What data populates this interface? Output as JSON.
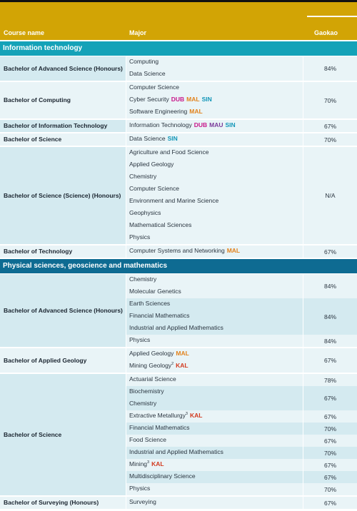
{
  "header": {
    "course_col": "Course name",
    "major_col": "Major",
    "gaokao_col": "Gaokao"
  },
  "colors": {
    "header": "#d2a405",
    "section1": "#14a2b8",
    "section2": "#0e6b92",
    "row_light": "#e9f4f7",
    "row_dark": "#d4eaf0"
  },
  "sections": [
    {
      "title": "Information technology",
      "color": "#14a2b8",
      "courses": [
        {
          "name": "Bachelor of Advanced Science (Honours)",
          "blocks": [
            {
              "majors": [
                {
                  "name": "Computing",
                  "tags": []
                },
                {
                  "name": "Data Science",
                  "tags": []
                }
              ],
              "score": "84%"
            }
          ]
        },
        {
          "name": "Bachelor of Computing",
          "blocks": [
            {
              "majors": [
                {
                  "name": "Computer Science",
                  "tags": []
                },
                {
                  "name": "Cyber Security",
                  "tags": [
                    "DUB",
                    "MAL",
                    "SIN"
                  ]
                },
                {
                  "name": "Software Engineering",
                  "tags": [
                    "MAL"
                  ]
                }
              ],
              "score": "70%"
            }
          ]
        },
        {
          "name": "Bachelor of Information Technology",
          "blocks": [
            {
              "majors": [
                {
                  "name": "Information Technology",
                  "tags": [
                    "DUB",
                    "MAU",
                    "SIN"
                  ]
                }
              ],
              "score": "67%"
            }
          ]
        },
        {
          "name": "Bachelor of Science",
          "blocks": [
            {
              "majors": [
                {
                  "name": "Data Science",
                  "tags": [
                    "SIN"
                  ]
                }
              ],
              "score": "70%"
            }
          ]
        },
        {
          "name": "Bachelor of Science (Science) (Honours)",
          "blocks": [
            {
              "majors": [
                {
                  "name": "Agriculture and Food Science",
                  "tags": []
                },
                {
                  "name": "Applied Geology",
                  "tags": []
                },
                {
                  "name": "Chemistry",
                  "tags": []
                },
                {
                  "name": "Computer Science",
                  "tags": []
                },
                {
                  "name": "Environment and Marine Science",
                  "tags": []
                },
                {
                  "name": "Geophysics",
                  "tags": []
                },
                {
                  "name": "Mathematical Sciences",
                  "tags": []
                },
                {
                  "name": "Physics",
                  "tags": []
                }
              ],
              "score": "N/A"
            }
          ]
        },
        {
          "name": "Bachelor of Technology",
          "blocks": [
            {
              "majors": [
                {
                  "name": "Computer Systems and Networking",
                  "tags": [
                    "MAL"
                  ]
                }
              ],
              "score": "67%"
            }
          ]
        }
      ]
    },
    {
      "title": "Physical sciences, geoscience and mathematics",
      "color": "#0e6b92",
      "courses": [
        {
          "name": "Bachelor of Advanced Science (Honours)",
          "blocks": [
            {
              "majors": [
                {
                  "name": "Chemistry",
                  "tags": []
                },
                {
                  "name": "Molecular Genetics",
                  "tags": []
                }
              ],
              "score": "84%"
            },
            {
              "majors": [
                {
                  "name": "Earth Sciences",
                  "tags": []
                },
                {
                  "name": "Financial Mathematics",
                  "tags": []
                },
                {
                  "name": "Industrial and Applied Mathematics",
                  "tags": []
                }
              ],
              "score": "84%"
            },
            {
              "majors": [
                {
                  "name": "Physics",
                  "tags": []
                }
              ],
              "score": "84%"
            }
          ]
        },
        {
          "name": "Bachelor of Applied Geology",
          "blocks": [
            {
              "majors": [
                {
                  "name": "Applied Geology",
                  "tags": [
                    "MAL"
                  ]
                },
                {
                  "name": "Mining Geology",
                  "sup": "2",
                  "tags": [
                    "KAL"
                  ]
                }
              ],
              "score": "67%"
            }
          ]
        },
        {
          "name": "Bachelor of Science",
          "blocks": [
            {
              "majors": [
                {
                  "name": "Actuarial Science",
                  "tags": []
                }
              ],
              "score": "78%"
            },
            {
              "majors": [
                {
                  "name": "Biochemistry",
                  "tags": []
                },
                {
                  "name": "Chemistry",
                  "tags": []
                }
              ],
              "score": "67%"
            },
            {
              "majors": [
                {
                  "name": "Extractive Metallurgy",
                  "sup": "3",
                  "tags": [
                    "KAL"
                  ]
                }
              ],
              "score": "67%"
            },
            {
              "majors": [
                {
                  "name": "Financial Mathematics",
                  "tags": []
                }
              ],
              "score": "70%"
            },
            {
              "majors": [
                {
                  "name": "Food Science",
                  "tags": []
                }
              ],
              "score": "67%"
            },
            {
              "majors": [
                {
                  "name": "Industrial and Applied Mathematics",
                  "tags": []
                }
              ],
              "score": "70%"
            },
            {
              "majors": [
                {
                  "name": "Mining",
                  "sup": "3",
                  "tags": [
                    "KAL"
                  ]
                }
              ],
              "score": "67%"
            },
            {
              "majors": [
                {
                  "name": "Multidisciplinary Science",
                  "tags": []
                }
              ],
              "score": "67%"
            },
            {
              "majors": [
                {
                  "name": "Physics",
                  "tags": []
                }
              ],
              "score": "70%"
            }
          ]
        },
        {
          "name": "Bachelor of Surveying (Honours)",
          "blocks": [
            {
              "majors": [
                {
                  "name": "Surveying",
                  "tags": []
                }
              ],
              "score": "67%"
            }
          ]
        }
      ]
    }
  ]
}
